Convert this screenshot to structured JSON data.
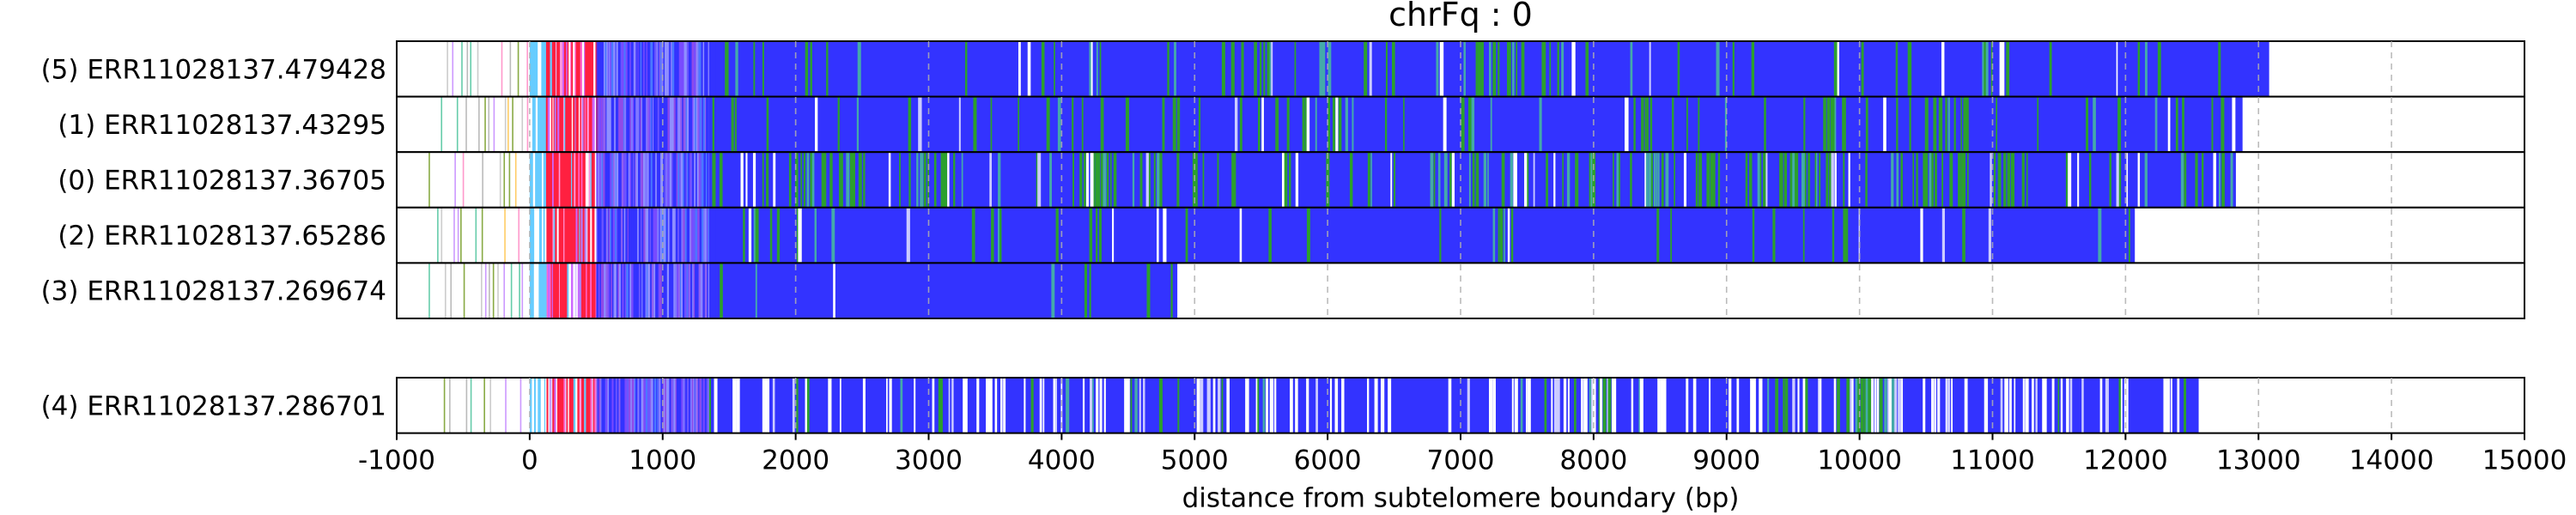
{
  "chart_data": {
    "type": "heatmap",
    "title": "chrFq : 0",
    "xlabel": "distance from subtelomere boundary (bp)",
    "xlim": [
      -1000,
      15000
    ],
    "xticks": [
      -1000,
      0,
      1000,
      2000,
      3000,
      4000,
      5000,
      6000,
      7000,
      8000,
      9000,
      10000,
      11000,
      12000,
      13000,
      14000,
      15000
    ],
    "xtick_labels": [
      "-1000",
      "0",
      "1000",
      "2000",
      "3000",
      "4000",
      "5000",
      "6000",
      "7000",
      "8000",
      "9000",
      "10000",
      "11000",
      "12000",
      "13000",
      "14000",
      "15000"
    ],
    "grid": "vertical dashed at major ticks",
    "colors": {
      "telomere_repeat": "#3333ff",
      "variant_repeat": "#2ca02c",
      "subtelomere_red": "#ff2040",
      "subtelomere_pink": "#ff66cc",
      "subtelomere_violet": "#cc66ff",
      "subtelomere_light": "#ddccff",
      "subtelomere_cyan": "#66ccff"
    },
    "groups": [
      {
        "reads": [
          {
            "label": "(5) ERR11028137.479428",
            "start": -1000,
            "end": 13080,
            "green_density": 0.06,
            "white_density": 0.02,
            "green_clusters": [
              [
                4200,
                4300
              ],
              [
                5200,
                5600
              ],
              [
                7100,
                7800
              ],
              [
                8100,
                8300
              ],
              [
                10900,
                11000
              ]
            ]
          },
          {
            "label": "(1) ERR11028137.43295",
            "start": -1000,
            "end": 12880,
            "green_density": 0.08,
            "white_density": 0.02,
            "green_clusters": [
              [
                5800,
                6100
              ],
              [
                8300,
                8500
              ],
              [
                10550,
                10850
              ],
              [
                9700,
                9900
              ]
            ]
          },
          {
            "label": "(0) ERR11028137.36705",
            "start": -1000,
            "end": 12830,
            "green_density": 0.18,
            "white_density": 0.04,
            "green_clusters": [
              [
                2000,
                2600
              ],
              [
                2900,
                3300
              ],
              [
                4200,
                4400
              ],
              [
                8100,
                8600
              ],
              [
                9400,
                9800
              ],
              [
                10200,
                10800
              ]
            ]
          },
          {
            "label": "(2) ERR11028137.65286",
            "start": -1000,
            "end": 12070,
            "green_density": 0.04,
            "white_density": 0.02,
            "green_clusters": [
              [
                1000,
                1300
              ],
              [
                4200,
                4300
              ],
              [
                7200,
                7400
              ]
            ]
          },
          {
            "label": "(3) ERR11028137.269674",
            "start": -1000,
            "end": 4870,
            "green_density": 0.03,
            "white_density": 0.02,
            "green_clusters": [
              [
                1000,
                1200
              ]
            ]
          }
        ]
      },
      {
        "reads": [
          {
            "label": "(4) ERR11028137.286701",
            "start": -1000,
            "end": 12550,
            "green_density": 0.05,
            "white_density": 0.22,
            "green_clusters": [
              [
                9300,
                9400
              ],
              [
                9900,
                10300
              ],
              [
                2000,
                2100
              ]
            ]
          }
        ]
      }
    ]
  }
}
